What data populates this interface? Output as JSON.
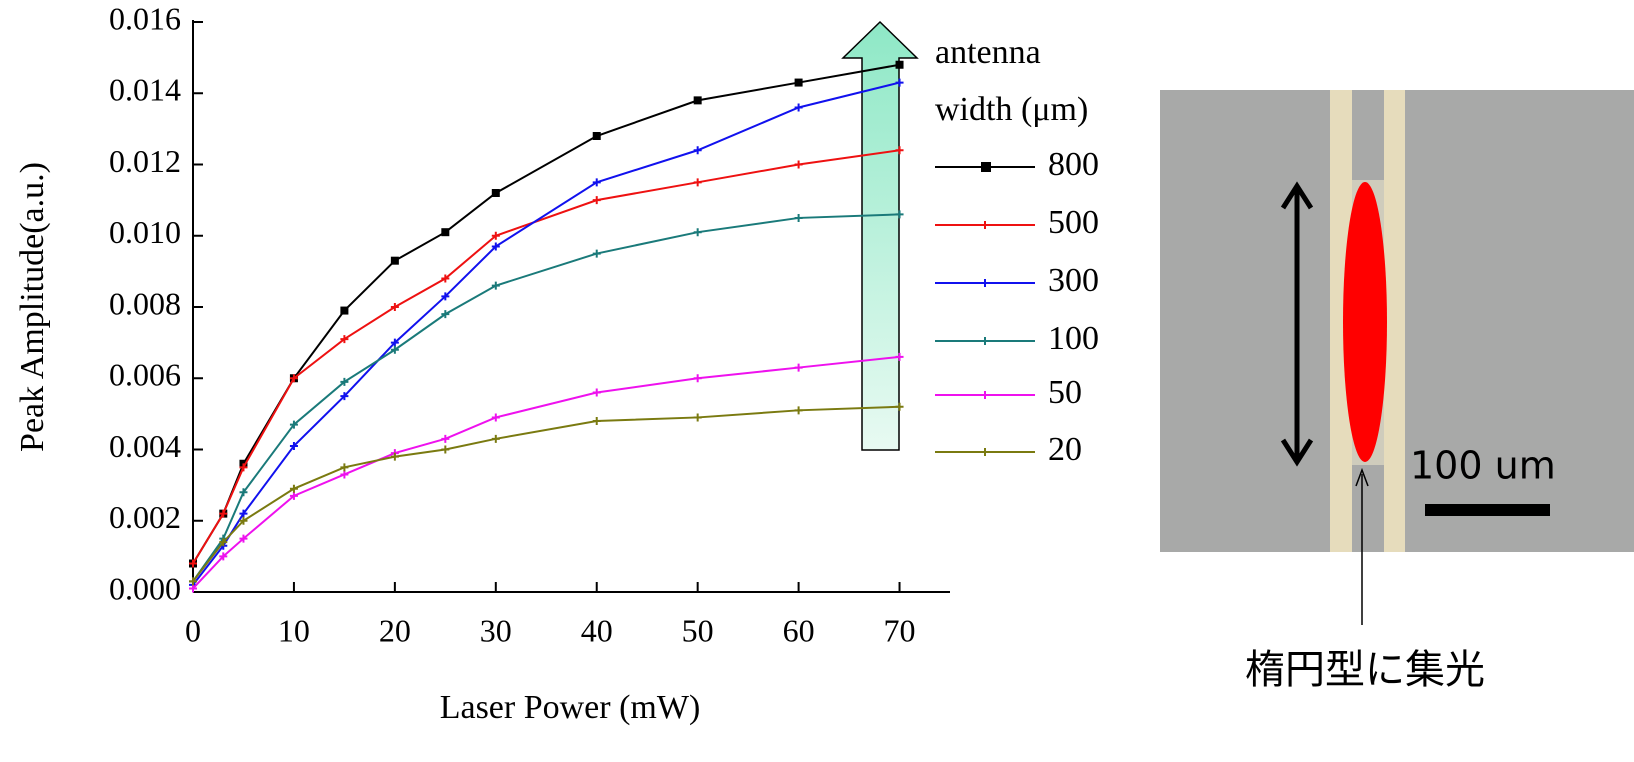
{
  "chart_data": {
    "type": "line",
    "x_label": "Laser Power (mW)",
    "y_label": "Peak Amplitude(a.u.)",
    "legend_title": [
      "antenna",
      "width (μm)"
    ],
    "x": [
      0,
      3,
      5,
      10,
      15,
      20,
      25,
      30,
      40,
      50,
      60,
      70
    ],
    "series": [
      {
        "name": "800",
        "color": "#000000",
        "marker": "square",
        "values": [
          0.0008,
          0.0022,
          0.0036,
          0.006,
          0.0079,
          0.0093,
          0.0101,
          0.0112,
          0.0128,
          0.0138,
          0.0143,
          0.0148
        ]
      },
      {
        "name": "500",
        "color": "#ee1111",
        "marker": "plus",
        "values": [
          0.0008,
          0.0022,
          0.0035,
          0.006,
          0.0071,
          0.008,
          0.0088,
          0.01,
          0.011,
          0.0115,
          0.012,
          0.0124
        ]
      },
      {
        "name": "300",
        "color": "#1111ee",
        "marker": "plus",
        "values": [
          0.0002,
          0.0013,
          0.0022,
          0.0041,
          0.0055,
          0.007,
          0.0083,
          0.0097,
          0.0115,
          0.0124,
          0.0136,
          0.0143
        ]
      },
      {
        "name": "100",
        "color": "#1a7a7a",
        "marker": "plus",
        "values": [
          0.0003,
          0.0015,
          0.0028,
          0.0047,
          0.0059,
          0.0068,
          0.0078,
          0.0086,
          0.0095,
          0.0101,
          0.0105,
          0.0106
        ]
      },
      {
        "name": "50",
        "color": "#ee11ee",
        "marker": "plus",
        "values": [
          0.0001,
          0.001,
          0.0015,
          0.0027,
          0.0033,
          0.0039,
          0.0043,
          0.0049,
          0.0056,
          0.006,
          0.0063,
          0.0066
        ]
      },
      {
        "name": "20",
        "color": "#7a7a10",
        "marker": "plus",
        "values": [
          0.0003,
          0.0014,
          0.002,
          0.0029,
          0.0035,
          0.0038,
          0.004,
          0.0043,
          0.0048,
          0.0049,
          0.0051,
          0.0052
        ]
      }
    ],
    "xlim": [
      0,
      75
    ],
    "ylim": [
      0,
      0.016
    ],
    "xticks": [
      0,
      10,
      20,
      30,
      40,
      50,
      60,
      70
    ],
    "yticks": [
      {
        "value": 0,
        "label": "0.000"
      },
      {
        "value": 0.002,
        "label": "0.002"
      },
      {
        "value": 0.004,
        "label": "0.004"
      },
      {
        "value": 0.006,
        "label": "0.006"
      },
      {
        "value": 0.008,
        "label": "0.008"
      },
      {
        "value": 0.01,
        "label": "0.010"
      },
      {
        "value": 0.012,
        "label": "0.012"
      },
      {
        "value": 0.014,
        "label": "0.014"
      },
      {
        "value": 0.016,
        "label": "0.016"
      }
    ]
  },
  "image": {
    "scale_label": "100 um",
    "caption": "楕円型に集光"
  }
}
